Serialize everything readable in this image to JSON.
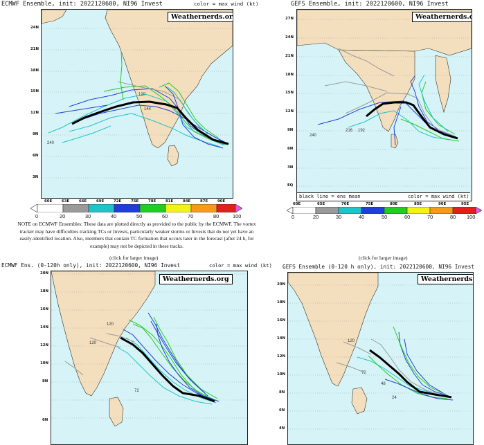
{
  "panels": {
    "tl": {
      "title": "ECMWF Ensemble, init: 2022120600, NI96 Invest",
      "color_note": "color = max wind (kt)",
      "badge": "Weathernerds.org",
      "lat_labels": [
        "24N",
        "21N",
        "18N",
        "15N",
        "12N",
        "9N",
        "6N",
        "3N"
      ],
      "lon_labels": [
        "60E",
        "63E",
        "66E",
        "69E",
        "72E",
        "75E",
        "78E",
        "81E",
        "84E",
        "87E",
        "90E"
      ],
      "hour_labels": [
        "240",
        "120",
        "144"
      ]
    },
    "tr": {
      "title": "GEFS Ensemble, init: 2022120600, NI96 Invest",
      "badge": "Weathernerds.org",
      "lat_labels": [
        "27N",
        "24N",
        "21N",
        "18N",
        "15N",
        "12N",
        "9N",
        "6N",
        "3N",
        "EQ"
      ],
      "lon_labels": [
        "60E",
        "65E",
        "70E",
        "75E",
        "80E",
        "85E",
        "90E",
        "95E"
      ],
      "bottom_left": "black line = ens mean",
      "bottom_right": "color = max wind (kt)",
      "hour_labels": [
        "240",
        "216",
        "192"
      ]
    },
    "bl": {
      "title": "ECMWF Ens. (0-120h only), init: 2022120600, NI96 Invest",
      "color_note": "color = max wind (kt)",
      "badge": "Weathernerds.org",
      "lat_labels": [
        "20N",
        "18N",
        "16N",
        "14N",
        "12N",
        "10N",
        "8N",
        "6N"
      ],
      "hour_labels": [
        "120",
        "120",
        "72"
      ]
    },
    "br": {
      "title": "GEFS Ensemble (0-120 h only), init: 2022120600, NI96 Invest",
      "badge": "Weathernerds.org",
      "lat_labels": [
        "20N",
        "18N",
        "16N",
        "14N",
        "12N",
        "10N",
        "8N",
        "6N",
        "4N"
      ],
      "hour_labels": [
        "120",
        "72",
        "48",
        "24"
      ]
    }
  },
  "legend_tl": {
    "labels": [
      "0",
      "20",
      "30",
      "40",
      "50",
      "60",
      "70",
      "80",
      "100"
    ]
  },
  "legend_tr": {
    "labels": [
      "0",
      "20",
      "30",
      "40",
      "50",
      "60",
      "70",
      "80",
      "100"
    ]
  },
  "note": "NOTE on ECMWF Ensembles: These data are plotted directly as provided to the public by the ECMWF. The vortex tracker may have difficulties tracking TCs or Invests, particularly weaker storms or Invests that do not yet have an easily-identified location. Also, members that contain TC formation that occurs later in the forecast (after 24 h, for example) may not be depicted in these tracks.",
  "click_left": "(click for larger image)",
  "click_right": "(click for larger image)",
  "colors": {
    "ocean": "#d6f4f7",
    "land": "#f3dfbd",
    "c0": "#ffffff",
    "c20": "#9a9a9a",
    "c30": "#1fc3c8",
    "c40": "#1f3fd6",
    "c50": "#22cc22",
    "c60": "#f2f218",
    "c70": "#f59a1a",
    "c80": "#e0201a",
    "c100": "#e25ae0"
  }
}
